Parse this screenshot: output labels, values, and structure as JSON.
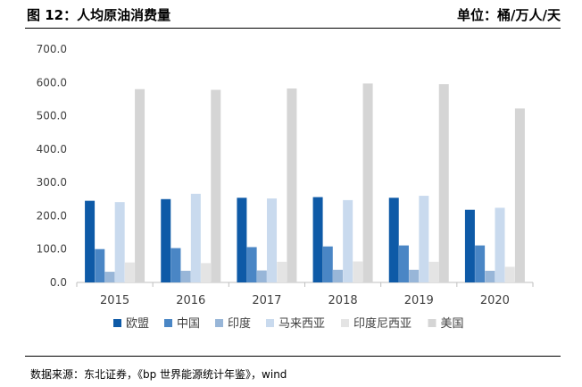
{
  "header": {
    "title": "图 12：人均原油消费量",
    "unit": "单位：桶/万人/天"
  },
  "source": "数据来源：东北证券，《bp 世界能源统计年鉴》，wind",
  "chart_data": {
    "type": "bar",
    "title": "",
    "xlabel": "",
    "ylabel": "",
    "categories": [
      "2015",
      "2016",
      "2017",
      "2018",
      "2019",
      "2020"
    ],
    "y_ticks": [
      "0.0",
      "100.0",
      "200.0",
      "300.0",
      "400.0",
      "500.0",
      "600.0",
      "700.0"
    ],
    "ylim": [
      0,
      700
    ],
    "grid": false,
    "legend_position": "bottom",
    "series": [
      {
        "name": "欧盟",
        "color": "#0e5aa7",
        "values": [
          245,
          250,
          254,
          256,
          254,
          218
        ]
      },
      {
        "name": "中国",
        "color": "#4a86c5",
        "values": [
          100,
          103,
          106,
          108,
          111,
          111
        ]
      },
      {
        "name": "印度",
        "color": "#98b6d8",
        "values": [
          32,
          35,
          36,
          38,
          38,
          35
        ]
      },
      {
        "name": "马来西亚",
        "color": "#c9daee",
        "values": [
          241,
          266,
          252,
          247,
          260,
          224
        ]
      },
      {
        "name": "印度尼西亚",
        "color": "#e4e4e4",
        "values": [
          60,
          58,
          62,
          63,
          62,
          47
        ]
      },
      {
        "name": "美国",
        "color": "#d5d5d5",
        "values": [
          580,
          578,
          582,
          597,
          595,
          522
        ]
      }
    ]
  }
}
